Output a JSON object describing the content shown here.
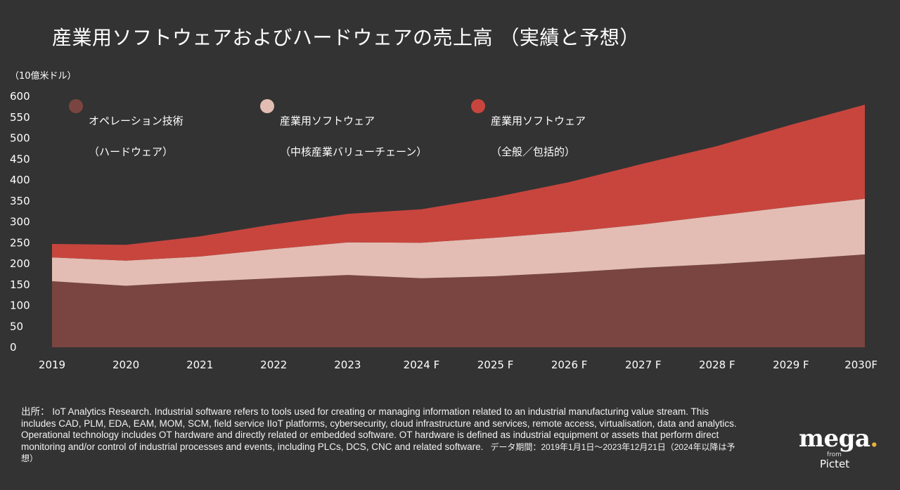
{
  "title": "産業用ソフトウェアおよびハードウェアの売上高 （実績と予想）",
  "unit_label": "（10億米ドル）",
  "legend": [
    {
      "line1": "オペレーション技術",
      "line2": "（ハードウェア）",
      "color": "#7a4540"
    },
    {
      "line1": "産業用ソフトウェア",
      "line2": "（中核産業バリューチェーン）",
      "color": "#e3bdb3"
    },
    {
      "line1": "産業用ソフトウェア",
      "line2": "（全般／包括的）",
      "color": "#c8453e"
    }
  ],
  "chart_data": {
    "type": "area",
    "stacked": true,
    "categories": [
      "2019",
      "2020",
      "2021",
      "2022",
      "2023",
      "2024 F",
      "2025 F",
      "2026 F",
      "2027 F",
      "2028 F",
      "2029 F",
      "2030F"
    ],
    "series": [
      {
        "name": "オペレーション技術（ハードウェア）",
        "color": "#7a4540",
        "values": [
          158,
          147,
          157,
          165,
          173,
          165,
          170,
          179,
          190,
          199,
          210,
          222
        ]
      },
      {
        "name": "産業用ソフトウェア（中核産業バリューチェーン）",
        "color": "#e3bdb3",
        "values": [
          57,
          60,
          60,
          70,
          78,
          85,
          92,
          97,
          104,
          116,
          126,
          133
        ]
      },
      {
        "name": "産業用ソフトウェア（全般／包括的）",
        "color": "#c8453e",
        "values": [
          32,
          38,
          48,
          59,
          68,
          80,
          97,
          119,
          145,
          166,
          196,
          225
        ]
      }
    ],
    "yticks": [
      0,
      50,
      100,
      150,
      200,
      250,
      300,
      350,
      400,
      450,
      500,
      550,
      600
    ],
    "ylim": [
      0,
      600
    ],
    "ylabel": "（10億米ドル）",
    "grid": false,
    "legend_position": "top"
  },
  "source": {
    "text": "出所：  IoT Analytics Research. Industrial software refers to tools used for creating or managing information related to an industrial manufacturing value stream. This includes CAD, PLM, EDA, EAM, MOM, SCM, field service IIoT platforms, cybersecurity, cloud infrastructure and services, remote access, virtualisation, data and analytics. Operational technology includes OT hardware and directly related or embedded software. OT hardware is defined as industrial equipment or assets that perform direct monitoring and/or control of industrial processes and events, including PLCs, DCS, CNC and related software.",
    "period": "データ期間：2019年1月1日～2023年12月21日（2024年以降は予想）"
  },
  "logo": {
    "name": "mega",
    "dot": ".",
    "from": "from",
    "company": "Pictet"
  }
}
